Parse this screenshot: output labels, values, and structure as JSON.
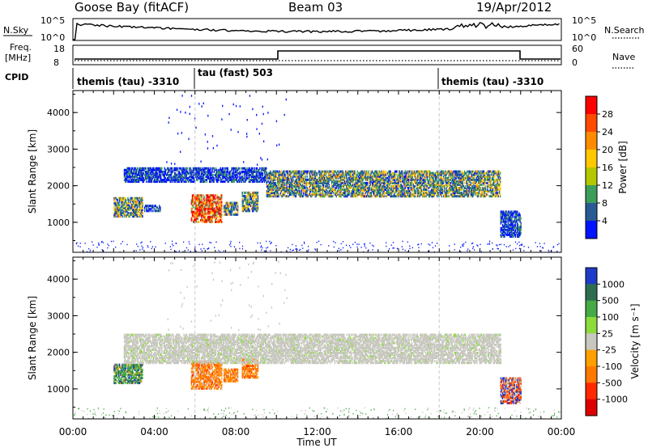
{
  "header": {
    "title": "Goose Bay (fitACF)",
    "beam": "Beam 03",
    "date": "19/Apr/2012"
  },
  "nsky_panel": {
    "left_label": "N.Sky",
    "left_ticks": [
      "10^5",
      "10^0"
    ],
    "right_ticks": [
      "10^5",
      "10^0"
    ],
    "right_label": "N.Search"
  },
  "freq_panel": {
    "left_label_1": "Freq.",
    "left_label_2": "[MHz]",
    "left_ticks": [
      "18",
      "8"
    ],
    "right_ticks": [
      "60",
      "0"
    ],
    "right_label": "Nave"
  },
  "cpid": {
    "label": "CPID",
    "segments": [
      {
        "text": "themis (tau) -3310",
        "start": 0.0
      },
      {
        "text": "tau (fast) 503",
        "start": 6.0
      },
      {
        "text": "themis (tau) -3310",
        "start": 18.0
      }
    ]
  },
  "power_colorbar": {
    "label": "Power [dB]",
    "ticks": [
      "28",
      "24",
      "20",
      "16",
      "12",
      "8",
      "4"
    ],
    "colors": [
      "#ff0000",
      "#ff4a00",
      "#ff8c00",
      "#ffc800",
      "#b4c800",
      "#3c9e5a",
      "#285a96",
      "#0014ff"
    ]
  },
  "velocity_colorbar": {
    "label": "Velocity [m s⁻¹]",
    "ticks": [
      "1000",
      "500",
      "100",
      "25",
      "-25",
      "-100",
      "-500",
      "-1000"
    ],
    "colors": [
      "#1e3cc8",
      "#2e6e50",
      "#46aa46",
      "#8cdc3c",
      "#c8c8c0",
      "#ffa000",
      "#ff7800",
      "#ff2800",
      "#dc0000"
    ]
  },
  "axes": {
    "ylabel": "Slant Range [km]",
    "xlabel": "Time UT",
    "y_ticks": [
      "4000",
      "3000",
      "2000",
      "1000"
    ],
    "x_ticks": [
      "00:00",
      "04:00",
      "08:00",
      "12:00",
      "16:00",
      "20:00",
      "00:00"
    ]
  },
  "chart_data": [
    {
      "type": "heatmap",
      "title": "Power",
      "xlabel": "",
      "ylabel": "Slant Range [km]",
      "xlim_hours": [
        0,
        24
      ],
      "ylim_km": [
        180,
        4600
      ],
      "patches": [
        {
          "t0": 2.0,
          "t1": 3.4,
          "r0": 1150,
          "r1": 1650,
          "level": "mid"
        },
        {
          "t0": 3.5,
          "t1": 4.3,
          "r0": 1300,
          "r1": 1450,
          "level": "low"
        },
        {
          "t0": 5.8,
          "t1": 7.3,
          "r0": 1000,
          "r1": 1750,
          "level": "high"
        },
        {
          "t0": 7.4,
          "t1": 8.1,
          "r0": 1200,
          "r1": 1550,
          "level": "mid"
        },
        {
          "t0": 8.3,
          "t1": 9.1,
          "r0": 1300,
          "r1": 1800,
          "level": "mid"
        },
        {
          "t0": 2.5,
          "t1": 9.5,
          "r0": 2100,
          "r1": 2500,
          "level": "low"
        },
        {
          "t0": 9.5,
          "t1": 21.0,
          "r0": 1700,
          "r1": 2400,
          "level": "mid"
        },
        {
          "t0": 21.0,
          "t1": 22.0,
          "r0": 600,
          "r1": 1300,
          "level": "low"
        }
      ]
    },
    {
      "type": "heatmap",
      "title": "Velocity",
      "xlabel": "Time UT",
      "ylabel": "Slant Range [km]",
      "xlim_hours": [
        0,
        24
      ],
      "ylim_km": [
        180,
        4600
      ],
      "patches": [
        {
          "t0": 2.0,
          "t1": 3.4,
          "r0": 1150,
          "r1": 1650,
          "level": "green"
        },
        {
          "t0": 5.8,
          "t1": 7.3,
          "r0": 1000,
          "r1": 1750,
          "level": "orange"
        },
        {
          "t0": 7.4,
          "t1": 8.1,
          "r0": 1200,
          "r1": 1550,
          "level": "orange"
        },
        {
          "t0": 8.3,
          "t1": 9.1,
          "r0": 1300,
          "r1": 1800,
          "level": "orange"
        },
        {
          "t0": 2.5,
          "t1": 21.0,
          "r0": 1700,
          "r1": 2500,
          "level": "grey"
        },
        {
          "t0": 21.0,
          "t1": 22.0,
          "r0": 600,
          "r1": 1300,
          "level": "mixed"
        }
      ]
    }
  ]
}
